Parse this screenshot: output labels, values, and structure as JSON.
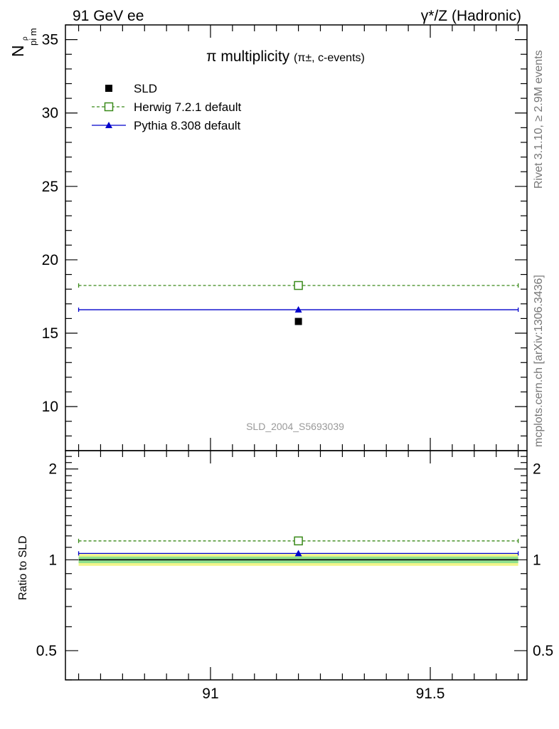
{
  "header": {
    "left": "91 GeV ee",
    "right": "γ*/Z (Hadronic)"
  },
  "side_text": {
    "rivet": "Rivet 3.1.10, ≥ 2.9M events",
    "mcplots": "mcplots.cern.ch [arXiv:1306.3436]"
  },
  "chart_data": [
    {
      "type": "scatter",
      "panel": "main",
      "title": "π multiplicity",
      "title_suffix": "(π±, c-events)",
      "ylabel": "N",
      "ylabel_sub": "pi m",
      "ylabel_sup": "ρ",
      "analysis_label": "SLD_2004_S5693039",
      "xlim": [
        90.67,
        91.72
      ],
      "ylim": [
        7.0,
        36.0
      ],
      "yticks": [
        10,
        15,
        20,
        25,
        30,
        35
      ],
      "xticks": [
        91,
        91.5
      ],
      "x_bin": [
        90.7,
        91.7
      ],
      "x_center": 91.2,
      "legend_position": "top-left",
      "series": [
        {
          "name": "SLD",
          "value": 15.8,
          "color": "#000000",
          "marker": "square-filled",
          "line": "none"
        },
        {
          "name": "Herwig 7.2.1 default",
          "value": 18.25,
          "color": "#3a8a1a",
          "marker": "square-open",
          "line": "dashed"
        },
        {
          "name": "Pythia 8.308 default",
          "value": 16.6,
          "color": "#0000cc",
          "marker": "triangle-filled",
          "line": "solid"
        }
      ]
    },
    {
      "type": "scatter",
      "panel": "ratio",
      "ylabel": "Ratio to SLD",
      "ylim": [
        0.4,
        2.3
      ],
      "log_y": true,
      "yticks": [
        0.5,
        1,
        2
      ],
      "ytick_labels": [
        "0.5",
        "1",
        "2"
      ],
      "xlim": [
        90.67,
        91.72
      ],
      "xticks": [
        91,
        91.5
      ],
      "xtick_labels": [
        "91",
        "91.5"
      ],
      "x_bin": [
        90.7,
        91.7
      ],
      "x_center": 91.2,
      "uncertainty_bands": [
        {
          "lo": 0.955,
          "hi": 1.045,
          "color": "#f2f58a"
        },
        {
          "lo": 0.975,
          "hi": 1.025,
          "color": "#8ee08e"
        }
      ],
      "series": [
        {
          "name": "SLD",
          "value": 1.0,
          "color": "#000000",
          "line": "solid"
        },
        {
          "name": "Herwig 7.2.1 default",
          "value": 1.155,
          "color": "#3a8a1a",
          "marker": "square-open",
          "line": "dashed"
        },
        {
          "name": "Pythia 8.308 default",
          "value": 1.05,
          "color": "#0000cc",
          "marker": "triangle-filled",
          "line": "solid"
        }
      ]
    }
  ]
}
